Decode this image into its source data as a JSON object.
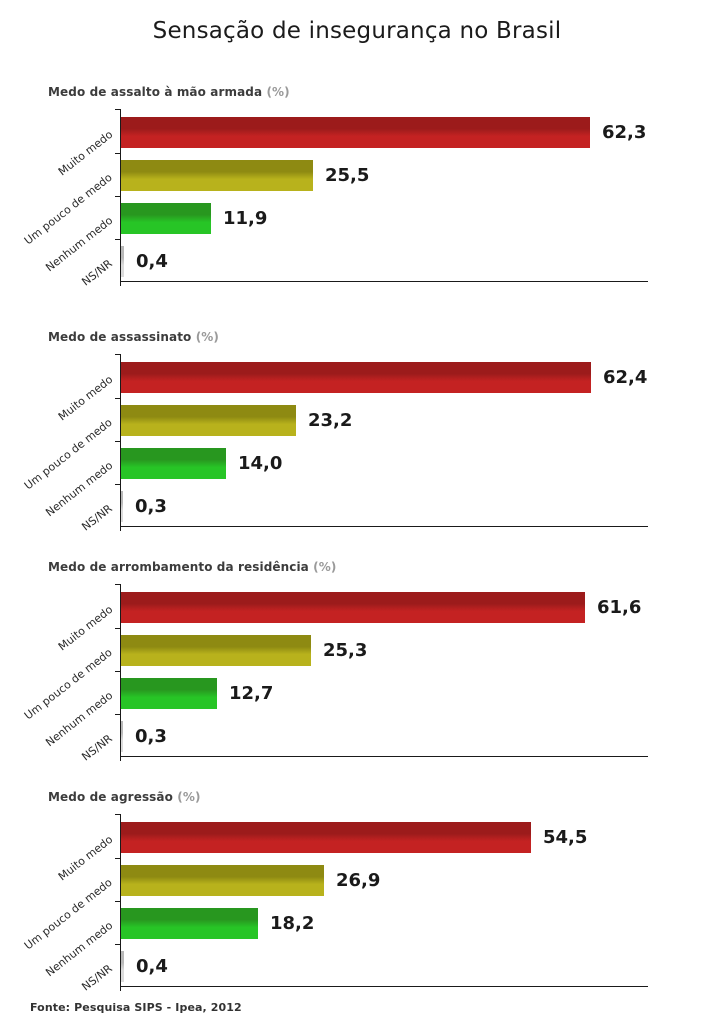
{
  "title": "Sensação de insegurança no Brasil",
  "footer": "Fonte: Pesquisa SIPS - Ipea, 2012",
  "colors": {
    "axis": "#1a1a1a",
    "header_text": "#3c3c3c",
    "header_unit": "#9a9a9a",
    "bar_colors": [
      {
        "top": "#9c1b1b",
        "main": "#c42222"
      },
      {
        "top": "#8e8a12",
        "main": "#b8b21c"
      },
      {
        "top": "#28971f",
        "main": "#27c526"
      },
      {
        "top": "#b9b9b9",
        "main": "#dcdcdc"
      }
    ]
  },
  "chart_data": [
    {
      "type": "bar",
      "orientation": "horizontal",
      "title": "Medo de assalto à mão armada",
      "unit": "(%)",
      "categories": [
        "Muito medo",
        "Um pouco de medo",
        "Nenhum medo",
        "NS/NR"
      ],
      "values": [
        62.3,
        25.5,
        11.9,
        0.4
      ],
      "value_labels": [
        "62,3",
        "25,5",
        "11,9",
        "0,4"
      ],
      "xlim": [
        0,
        70
      ],
      "grid": false,
      "legend": "none"
    },
    {
      "type": "bar",
      "orientation": "horizontal",
      "title": "Medo de assassinato",
      "unit": "(%)",
      "categories": [
        "Muito medo",
        "Um pouco de medo",
        "Nenhum medo",
        "NS/NR"
      ],
      "values": [
        62.4,
        23.2,
        14.0,
        0.3
      ],
      "value_labels": [
        "62,4",
        "23,2",
        "14,0",
        "0,3"
      ],
      "xlim": [
        0,
        70
      ],
      "grid": false,
      "legend": "none"
    },
    {
      "type": "bar",
      "orientation": "horizontal",
      "title": "Medo de arrombamento da residência",
      "unit": "(%)",
      "categories": [
        "Muito medo",
        "Um pouco de medo",
        "Nenhum medo",
        "NS/NR"
      ],
      "values": [
        61.6,
        25.3,
        12.7,
        0.3
      ],
      "value_labels": [
        "61,6",
        "25,3",
        "12,7",
        "0,3"
      ],
      "xlim": [
        0,
        70
      ],
      "grid": false,
      "legend": "none"
    },
    {
      "type": "bar",
      "orientation": "horizontal",
      "title": "Medo de agressão",
      "unit": "(%)",
      "categories": [
        "Muito medo",
        "Um pouco de medo",
        "Nenhum medo",
        "NS/NR"
      ],
      "values": [
        54.5,
        26.9,
        18.2,
        0.4
      ],
      "value_labels": [
        "54,5",
        "26,9",
        "18,2",
        "0,4"
      ],
      "xlim": [
        0,
        70
      ],
      "grid": false,
      "legend": "none"
    }
  ]
}
